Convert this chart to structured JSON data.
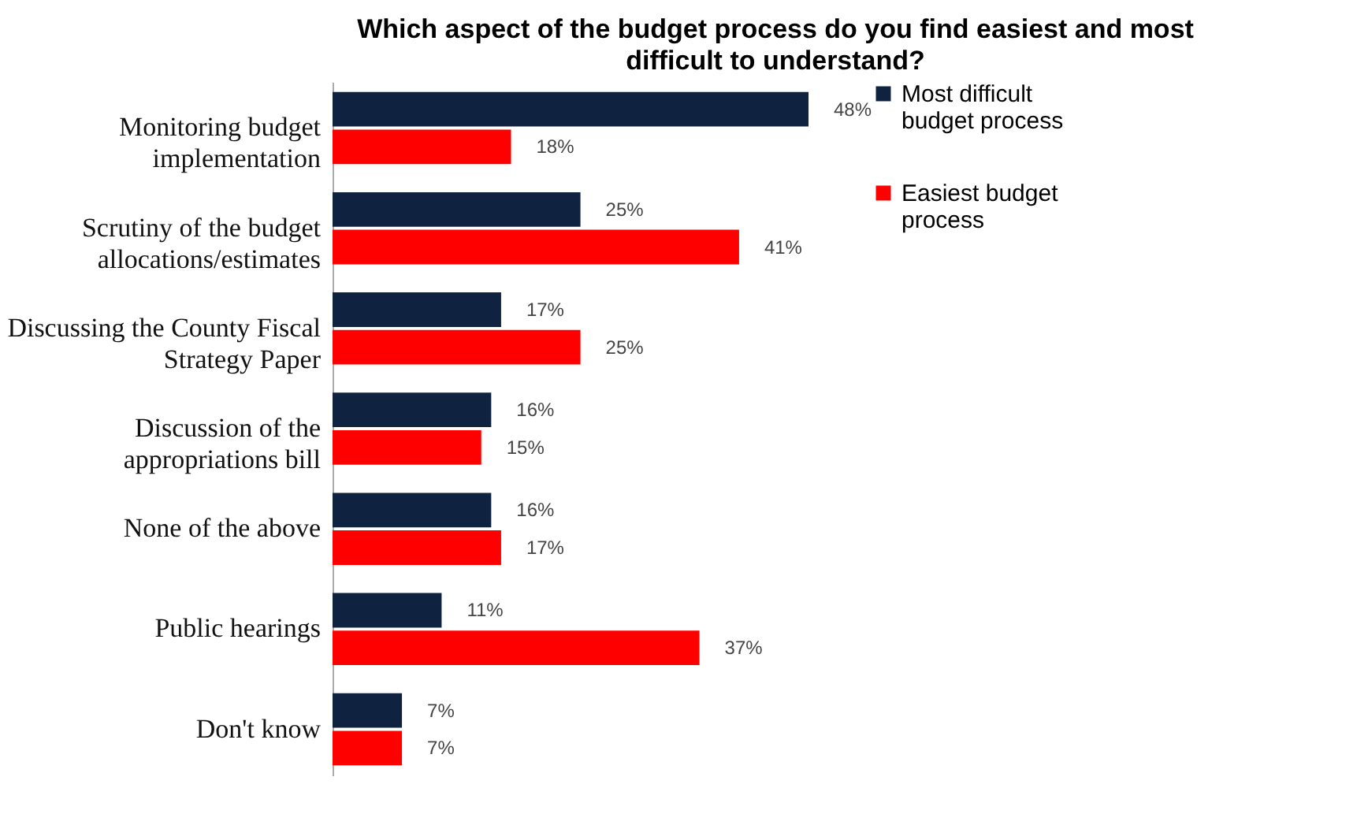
{
  "chart_data": {
    "type": "bar",
    "orientation": "horizontal",
    "title": "Which aspect of the budget process do you find easiest and most difficult to understand?",
    "categories": [
      "Monitoring budget implementation",
      "Scrutiny of the budget allocations/estimates",
      "Discussing the County Fiscal Strategy Paper",
      "Discussion of the appropriations bill",
      "None of the above",
      "Public hearings",
      "Don't know"
    ],
    "series": [
      {
        "name": "Most difficult budget process",
        "color": "#0f2341",
        "values": [
          48,
          25,
          17,
          16,
          16,
          11,
          7
        ],
        "value_labels": [
          "48%",
          "25%",
          "17%",
          "16%",
          "16%",
          "11%",
          "7%"
        ]
      },
      {
        "name": "Easiest budget process",
        "color": "#ff0000",
        "values": [
          18,
          41,
          25,
          15,
          17,
          37,
          7
        ],
        "value_labels": [
          "18%",
          "41%",
          "25%",
          "15%",
          "17%",
          "37%",
          "7%"
        ]
      }
    ],
    "legend": "right"
  }
}
